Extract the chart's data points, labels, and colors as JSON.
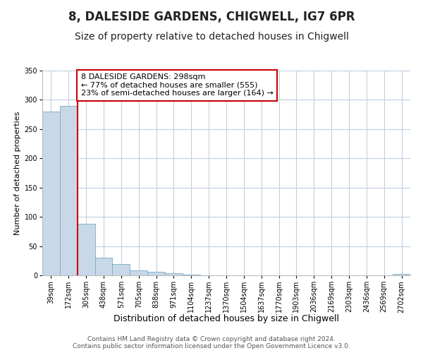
{
  "title": "8, DALESIDE GARDENS, CHIGWELL, IG7 6PR",
  "subtitle": "Size of property relative to detached houses in Chigwell",
  "xlabel": "Distribution of detached houses by size in Chigwell",
  "ylabel": "Number of detached properties",
  "bin_labels": [
    "39sqm",
    "172sqm",
    "305sqm",
    "438sqm",
    "571sqm",
    "705sqm",
    "838sqm",
    "971sqm",
    "1104sqm",
    "1237sqm",
    "1370sqm",
    "1504sqm",
    "1637sqm",
    "1770sqm",
    "1903sqm",
    "2036sqm",
    "2169sqm",
    "2303sqm",
    "2436sqm",
    "2569sqm",
    "2702sqm"
  ],
  "bar_heights": [
    280,
    290,
    88,
    30,
    19,
    8,
    6,
    4,
    1,
    0,
    0,
    0,
    0,
    0,
    0,
    0,
    0,
    0,
    0,
    0,
    2
  ],
  "bar_color": "#c8d8e8",
  "bar_edge_color": "#7aaac8",
  "vline_x_index": 2,
  "vline_color": "#cc0000",
  "annotation_line1": "8 DALESIDE GARDENS: 298sqm",
  "annotation_line2": "← 77% of detached houses are smaller (555)",
  "annotation_line3": "23% of semi-detached houses are larger (164) →",
  "annotation_box_edge_color": "#cc0000",
  "ylim": [
    0,
    350
  ],
  "yticks": [
    0,
    50,
    100,
    150,
    200,
    250,
    300,
    350
  ],
  "title_fontsize": 12,
  "subtitle_fontsize": 10,
  "xlabel_fontsize": 9,
  "ylabel_fontsize": 8,
  "tick_fontsize": 7,
  "annot_fontsize": 8,
  "footer_text": "Contains HM Land Registry data © Crown copyright and database right 2024.\nContains public sector information licensed under the Open Government Licence v3.0.",
  "footer_fontsize": 6.5,
  "background_color": "#ffffff",
  "grid_color": "#c0d0e0"
}
